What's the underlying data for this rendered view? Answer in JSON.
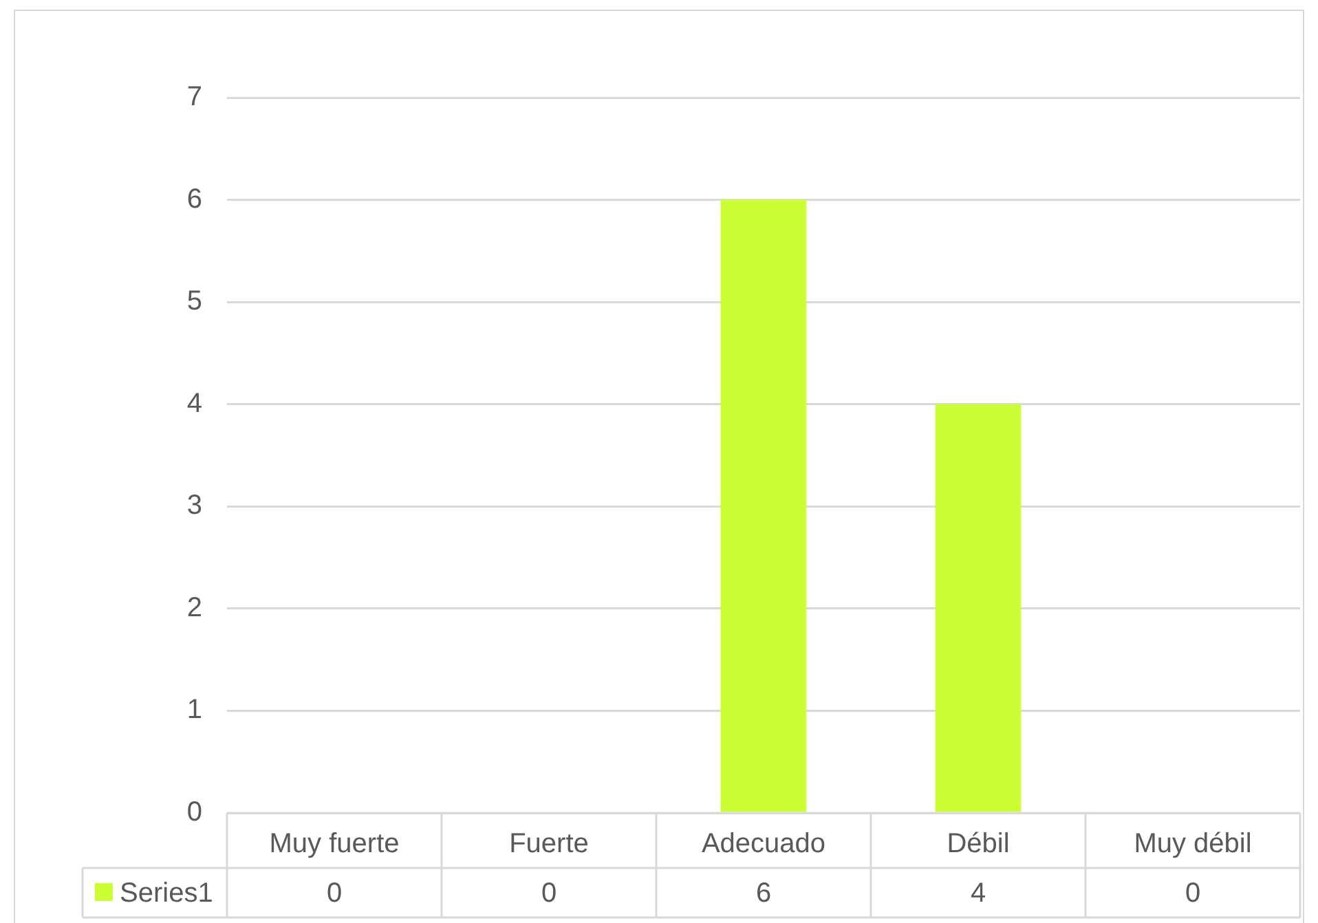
{
  "chart_data": {
    "type": "bar",
    "categories": [
      "Muy fuerte",
      "Fuerte",
      "Adecuado",
      "Débil",
      "Muy débil"
    ],
    "series": [
      {
        "name": "Series1",
        "color": "#ccff33",
        "values": [
          0,
          0,
          6,
          4,
          0
        ]
      }
    ],
    "ylim": [
      0,
      7
    ],
    "yticks": [
      0,
      1,
      2,
      3,
      4,
      5,
      6,
      7
    ],
    "grid": "y",
    "data_labels": true,
    "legend": "bottom"
  }
}
